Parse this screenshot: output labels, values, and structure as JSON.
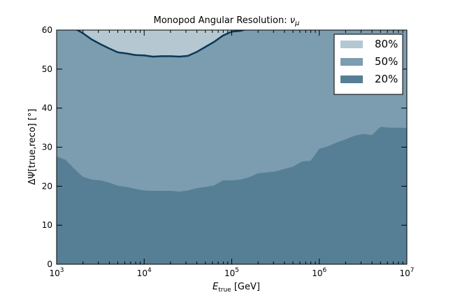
{
  "chart_data": {
    "type": "area",
    "title": "Monopod Angular Resolution: νμ",
    "title_text": "Monopod Angular Resolution: ",
    "title_nu": "ν",
    "title_mu": "μ",
    "xlabel_main": "E",
    "xlabel_sub": "true",
    "xlabel_unit": " [GeV]",
    "ylabel": "ΔΨ[true,reco] [°]",
    "ylabel_main": "ΔΨ[true,reco] [",
    "ylabel_deg": "°",
    "ylabel_close": "]",
    "xscale": "log",
    "xlim": [
      1000,
      10000000
    ],
    "ylim": [
      0,
      60
    ],
    "x_ticks": [
      {
        "value": 1000,
        "base": "10",
        "exp": "3"
      },
      {
        "value": 10000,
        "base": "10",
        "exp": "4"
      },
      {
        "value": 100000,
        "base": "10",
        "exp": "5"
      },
      {
        "value": 1000000,
        "base": "10",
        "exp": "6"
      },
      {
        "value": 10000000,
        "base": "10",
        "exp": "7"
      }
    ],
    "y_ticks": [
      {
        "value": 0,
        "label": "0"
      },
      {
        "value": 10,
        "label": "10"
      },
      {
        "value": 20,
        "label": "20"
      },
      {
        "value": 30,
        "label": "30"
      },
      {
        "value": 40,
        "label": "40"
      },
      {
        "value": 50,
        "label": "50"
      },
      {
        "value": 60,
        "label": "60"
      }
    ],
    "grid": false,
    "legend_position": "top-right",
    "colors": {
      "p80": "#b5c7d1",
      "p50": "#7c9caf",
      "p20": "#567f96",
      "line80": "#0b3a57"
    },
    "series": [
      {
        "name": "80%",
        "key": "p80",
        "x": [
          1000,
          1260,
          1585,
          1995,
          2512,
          3162,
          3981,
          5012,
          6310,
          7943,
          10000,
          12589,
          15849,
          19953,
          25119,
          31623,
          39811,
          50119,
          63096,
          79433,
          100000,
          125893,
          158489,
          199526,
          251189,
          316228,
          398107,
          501187,
          630957,
          794328,
          1000000,
          1258925,
          1584893,
          1995262,
          2511886,
          3162278,
          3981072,
          5011872,
          6309573,
          7943282,
          10000000
        ],
        "values": [
          60,
          60,
          60,
          60,
          60,
          60,
          60,
          60,
          60,
          60,
          60,
          60,
          60,
          60,
          60,
          60,
          60,
          60,
          60,
          60,
          60,
          60,
          60,
          60,
          60,
          60,
          60,
          60,
          60,
          60,
          60,
          60,
          60,
          60,
          60,
          60,
          60,
          60,
          60,
          60,
          60
        ]
      },
      {
        "name": "50%",
        "key": "p50",
        "x": [
          1000,
          1260,
          1585,
          1995,
          2512,
          3162,
          3981,
          5012,
          6310,
          7943,
          10000,
          12589,
          15849,
          19953,
          25119,
          31623,
          39811,
          50119,
          63096,
          79433,
          100000,
          125893,
          158489,
          199526,
          251189,
          316228,
          398107,
          501187,
          630957,
          794328,
          1000000,
          1258925,
          1584893,
          1995262,
          2511886,
          3162278,
          3981072,
          5011872,
          6309573,
          7943282,
          10000000
        ],
        "values": [
          62,
          61.5,
          60.5,
          59.2,
          57.6,
          56.4,
          55.3,
          54.3,
          54.0,
          53.6,
          53.5,
          53.2,
          53.3,
          53.3,
          53.2,
          53.4,
          54.4,
          55.7,
          57.0,
          58.6,
          59.6,
          59.8,
          60.5,
          61,
          61,
          61,
          61,
          61,
          61,
          61,
          61,
          61,
          61,
          61,
          61,
          61,
          61,
          61,
          61,
          61,
          61
        ]
      },
      {
        "name": "20%",
        "key": "p20",
        "x": [
          1000,
          1260,
          1585,
          1995,
          2512,
          3162,
          3981,
          5012,
          6310,
          7943,
          10000,
          12589,
          15849,
          19953,
          25119,
          31623,
          39811,
          50119,
          63096,
          79433,
          100000,
          125893,
          158489,
          199526,
          251189,
          316228,
          398107,
          501187,
          630957,
          794328,
          1000000,
          1258925,
          1584893,
          1995262,
          2511886,
          3162278,
          3981072,
          5011872,
          6309573,
          7943282,
          10000000
        ],
        "values": [
          27.6,
          26.8,
          24.5,
          22.4,
          21.7,
          21.5,
          20.9,
          20.1,
          19.8,
          19.3,
          18.9,
          18.8,
          18.8,
          18.8,
          18.6,
          18.9,
          19.5,
          19.8,
          20.2,
          21.5,
          21.5,
          21.7,
          22.3,
          23.3,
          23.5,
          23.8,
          24.4,
          25.0,
          26.3,
          26.5,
          29.6,
          30.2,
          31.2,
          32.0,
          32.9,
          33.4,
          33.1,
          35.2,
          35.0,
          35.0,
          34.9
        ]
      }
    ],
    "line_80_50_boundary": true
  }
}
